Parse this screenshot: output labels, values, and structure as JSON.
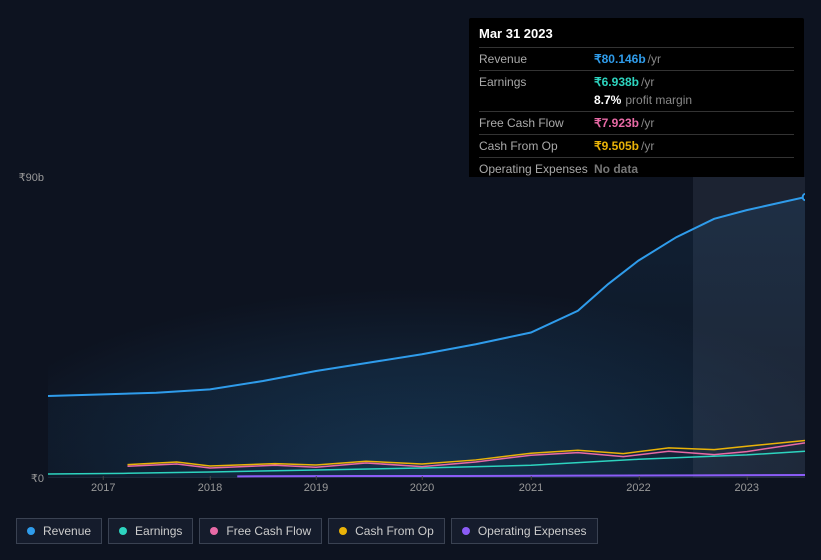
{
  "tooltip": {
    "date": "Mar 31 2023",
    "rows": [
      {
        "label": "Revenue",
        "value": "₹80.146b",
        "unit": "/yr",
        "color": "#2f9ceb",
        "hr_before": true
      },
      {
        "label": "Earnings",
        "value": "₹6.938b",
        "unit": "/yr",
        "color": "#2dd4bf",
        "hr_before": true
      },
      {
        "label": "",
        "value": "8.7%",
        "extra": "profit margin",
        "color": "#ffffff",
        "hr_before": false
      },
      {
        "label": "Free Cash Flow",
        "value": "₹7.923b",
        "unit": "/yr",
        "color": "#e86aa6",
        "hr_before": true
      },
      {
        "label": "Cash From Op",
        "value": "₹9.505b",
        "unit": "/yr",
        "color": "#eab308",
        "hr_before": true
      },
      {
        "label": "Operating Expenses",
        "value": "No data",
        "color": "#777",
        "hr_before": true
      }
    ]
  },
  "chart": {
    "type": "line",
    "background": "radial-gradient(ellipse at 50% 100%, #14304a 0%, #0d1320 70%)",
    "ylim": [
      0,
      90
    ],
    "yticks": [
      {
        "v": 90,
        "label": "₹90b"
      },
      {
        "v": 0,
        "label": "₹0"
      }
    ],
    "highlight_x_from": 852,
    "x_axis": {
      "min": 0,
      "max": 1000
    },
    "xticks": [
      {
        "x": 73,
        "label": "2017"
      },
      {
        "x": 214,
        "label": "2018"
      },
      {
        "x": 354,
        "label": "2019"
      },
      {
        "x": 494,
        "label": "2020"
      },
      {
        "x": 638,
        "label": "2021"
      },
      {
        "x": 780,
        "label": "2022"
      },
      {
        "x": 923,
        "label": "2023"
      }
    ],
    "series": [
      {
        "name": "Revenue",
        "color": "#2f9ceb",
        "stroke_width": 2,
        "points": [
          [
            0,
            24.5
          ],
          [
            73,
            25
          ],
          [
            143,
            25.5
          ],
          [
            214,
            26.5
          ],
          [
            284,
            29
          ],
          [
            354,
            32
          ],
          [
            424,
            34.5
          ],
          [
            494,
            37
          ],
          [
            565,
            40
          ],
          [
            638,
            43.5
          ],
          [
            700,
            50
          ],
          [
            740,
            58
          ],
          [
            780,
            65
          ],
          [
            830,
            72
          ],
          [
            880,
            77.5
          ],
          [
            923,
            80.1
          ],
          [
            1000,
            84
          ]
        ]
      },
      {
        "name": "Earnings",
        "color": "#2dd4bf",
        "stroke_width": 1.5,
        "start_at": 0,
        "points": [
          [
            0,
            1.2
          ],
          [
            100,
            1.4
          ],
          [
            214,
            1.8
          ],
          [
            354,
            2.4
          ],
          [
            494,
            3.0
          ],
          [
            638,
            3.8
          ],
          [
            780,
            5.6
          ],
          [
            923,
            6.9
          ],
          [
            1000,
            8.0
          ]
        ]
      },
      {
        "name": "Free Cash Flow",
        "color": "#e86aa6",
        "stroke_width": 1.5,
        "start_at": 105,
        "points": [
          [
            105,
            3.5
          ],
          [
            170,
            4.2
          ],
          [
            214,
            3.0
          ],
          [
            300,
            3.8
          ],
          [
            354,
            3.2
          ],
          [
            420,
            4.5
          ],
          [
            494,
            3.4
          ],
          [
            565,
            4.8
          ],
          [
            638,
            6.8
          ],
          [
            700,
            7.6
          ],
          [
            760,
            6.4
          ],
          [
            820,
            8.0
          ],
          [
            880,
            7.0
          ],
          [
            923,
            7.9
          ],
          [
            1000,
            10.5
          ]
        ]
      },
      {
        "name": "Cash From Op",
        "color": "#eab308",
        "stroke_width": 1.5,
        "start_at": 105,
        "points": [
          [
            105,
            4.0
          ],
          [
            170,
            4.8
          ],
          [
            214,
            3.6
          ],
          [
            300,
            4.3
          ],
          [
            354,
            3.9
          ],
          [
            420,
            5.0
          ],
          [
            494,
            4.2
          ],
          [
            565,
            5.4
          ],
          [
            638,
            7.4
          ],
          [
            700,
            8.3
          ],
          [
            760,
            7.3
          ],
          [
            820,
            9.0
          ],
          [
            880,
            8.5
          ],
          [
            923,
            9.5
          ],
          [
            1000,
            11.2
          ]
        ]
      },
      {
        "name": "Operating Expenses",
        "color": "#8b5cf6",
        "stroke_width": 2,
        "start_at": 250,
        "points": [
          [
            250,
            0.5
          ],
          [
            400,
            0.6
          ],
          [
            550,
            0.6
          ],
          [
            700,
            0.7
          ],
          [
            850,
            0.8
          ],
          [
            1000,
            0.9
          ]
        ]
      }
    ],
    "vertical_marker_x": 1000
  },
  "legend": [
    {
      "label": "Revenue",
      "color": "#2f9ceb"
    },
    {
      "label": "Earnings",
      "color": "#2dd4bf"
    },
    {
      "label": "Free Cash Flow",
      "color": "#e86aa6"
    },
    {
      "label": "Cash From Op",
      "color": "#eab308"
    },
    {
      "label": "Operating Expenses",
      "color": "#8b5cf6"
    }
  ],
  "colors": {
    "axis_text": "#999",
    "grid": "#1a2230"
  }
}
